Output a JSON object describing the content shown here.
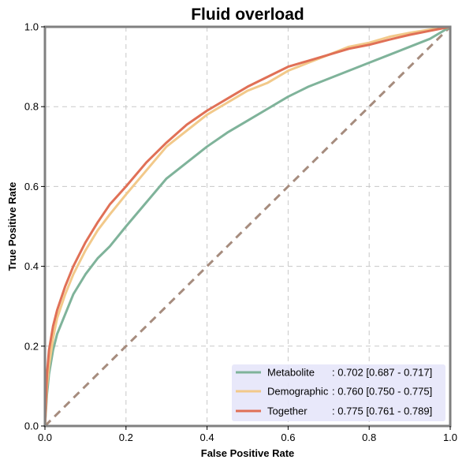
{
  "chart_data": {
    "type": "line",
    "title": "Fluid overload",
    "xlabel": "False Positive Rate",
    "ylabel": "True Positive Rate",
    "xlim": [
      0,
      1
    ],
    "ylim": [
      0,
      1
    ],
    "x_ticks": [
      "0.0",
      "0.2",
      "0.4",
      "0.6",
      "0.8",
      "1.0"
    ],
    "y_ticks": [
      "0.0",
      "0.2",
      "0.4",
      "0.6",
      "0.8",
      "1.0"
    ],
    "grid": true,
    "legend_position": "bottom-right",
    "series": [
      {
        "name": "Metabolite",
        "label_text": ": 0.702 [0.687 - 0.717]",
        "color": "#7fb39a",
        "x": [
          0,
          0.005,
          0.01,
          0.02,
          0.03,
          0.05,
          0.07,
          0.1,
          0.13,
          0.16,
          0.2,
          0.25,
          0.3,
          0.35,
          0.4,
          0.45,
          0.5,
          0.55,
          0.6,
          0.65,
          0.7,
          0.75,
          0.8,
          0.85,
          0.9,
          0.95,
          1.0
        ],
        "y": [
          0,
          0.08,
          0.13,
          0.19,
          0.23,
          0.28,
          0.33,
          0.38,
          0.42,
          0.45,
          0.5,
          0.56,
          0.62,
          0.66,
          0.7,
          0.735,
          0.765,
          0.795,
          0.825,
          0.85,
          0.87,
          0.89,
          0.91,
          0.93,
          0.95,
          0.97,
          1.0
        ]
      },
      {
        "name": "Demographic",
        "label_text": ": 0.760 [0.750 - 0.775]",
        "color": "#f2c98a",
        "x": [
          0,
          0.005,
          0.01,
          0.02,
          0.03,
          0.05,
          0.07,
          0.1,
          0.13,
          0.16,
          0.2,
          0.25,
          0.3,
          0.35,
          0.4,
          0.45,
          0.5,
          0.55,
          0.6,
          0.65,
          0.7,
          0.75,
          0.8,
          0.85,
          0.9,
          0.95,
          1.0
        ],
        "y": [
          0,
          0.1,
          0.15,
          0.22,
          0.27,
          0.33,
          0.38,
          0.44,
          0.49,
          0.53,
          0.58,
          0.64,
          0.7,
          0.74,
          0.78,
          0.81,
          0.84,
          0.86,
          0.89,
          0.91,
          0.93,
          0.95,
          0.96,
          0.975,
          0.985,
          0.993,
          1.0
        ]
      },
      {
        "name": "Together",
        "label_text": ": 0.775 [0.761 - 0.789]",
        "color": "#e07056",
        "x": [
          0,
          0.005,
          0.01,
          0.02,
          0.03,
          0.05,
          0.07,
          0.1,
          0.13,
          0.16,
          0.2,
          0.25,
          0.3,
          0.35,
          0.4,
          0.45,
          0.5,
          0.55,
          0.6,
          0.65,
          0.7,
          0.75,
          0.8,
          0.85,
          0.9,
          0.95,
          1.0
        ],
        "y": [
          0,
          0.13,
          0.19,
          0.25,
          0.29,
          0.35,
          0.4,
          0.46,
          0.51,
          0.555,
          0.6,
          0.66,
          0.71,
          0.755,
          0.79,
          0.82,
          0.85,
          0.875,
          0.9,
          0.915,
          0.93,
          0.945,
          0.955,
          0.968,
          0.98,
          0.99,
          1.0
        ]
      }
    ],
    "reference_line": {
      "x": [
        0,
        1
      ],
      "y": [
        0,
        1
      ],
      "color": "#a68c7e",
      "style": "dashed"
    }
  },
  "colors": {
    "frame": "#808080",
    "grid": "#c8c8c8",
    "legend_background": "#e6e6fa"
  }
}
